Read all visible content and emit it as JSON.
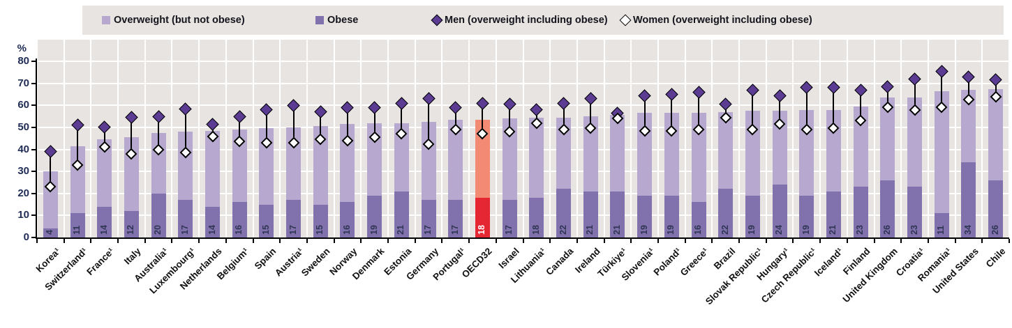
{
  "legend": {
    "items": [
      {
        "label": "Overweight (but not obese)",
        "marker": "square-filled"
      },
      {
        "label": "Obese",
        "marker": "square-filled"
      },
      {
        "label": "Men (overweight including obese)",
        "marker": "diamond-filled"
      },
      {
        "label": "Women (overweight including obese)",
        "marker": "diamond-open"
      }
    ]
  },
  "axes": {
    "y_unit": "%",
    "y_ticks": [
      0,
      10,
      20,
      30,
      40,
      50,
      60,
      70,
      80
    ],
    "y_max": 80
  },
  "chart_data": {
    "type": "bar",
    "subtype": "stacked-bars-with-point-markers",
    "title": "",
    "ylabel": "%",
    "ylim": [
      0,
      80
    ],
    "grid": true,
    "legend_position": "top",
    "categories": [
      "Korea¹",
      "Switzerland¹",
      "France¹",
      "Italy",
      "Australia¹",
      "Luxembourg¹",
      "Netherlands",
      "Belgium¹",
      "Spain",
      "Austria¹",
      "Sweden",
      "Norway",
      "Denmark",
      "Estonia",
      "Germany",
      "Portugal¹",
      "OECD32",
      "Israel",
      "Lithuania¹",
      "Canada",
      "Ireland",
      "Türkiye¹",
      "Slovenia¹",
      "Poland¹",
      "Greece¹",
      "Brazil",
      "Slovak Republic¹",
      "Hungary¹",
      "Czech Republic¹",
      "Iceland¹",
      "Finland",
      "United Kingdom",
      "Croatia¹",
      "Romania¹",
      "United States",
      "Chile"
    ],
    "highlight_category": "OECD32",
    "series": [
      {
        "name": "Obese",
        "role": "stack-bottom",
        "values": [
          4,
          11,
          14,
          12,
          20,
          17,
          14,
          16,
          15,
          17,
          15,
          16,
          19,
          21,
          17,
          17,
          18,
          17,
          18,
          22,
          21,
          21,
          19,
          19,
          16,
          22,
          19,
          24,
          19,
          21,
          23,
          26,
          23,
          11,
          34,
          26
        ]
      },
      {
        "name": "Overweight including obese (bar total)",
        "role": "stack-total",
        "values": [
          30,
          41.5,
          44.5,
          45.5,
          47.5,
          48,
          48.5,
          49,
          49.5,
          50,
          50.5,
          51.5,
          52,
          52,
          52.5,
          53.5,
          53.5,
          54,
          54.5,
          54.5,
          55,
          55.5,
          56.5,
          56.5,
          56.5,
          57,
          57.5,
          57.5,
          58,
          58,
          59.5,
          63.5,
          63.5,
          66.5,
          67,
          67.5
        ]
      },
      {
        "name": "Men (overweight including obese)",
        "role": "point-marker",
        "values": [
          39,
          51,
          50,
          54.5,
          55,
          58.5,
          51.5,
          55,
          58,
          60,
          57,
          59,
          59,
          61,
          63,
          59,
          61,
          60.5,
          58,
          61,
          63,
          56.5,
          64.5,
          65,
          66,
          60.5,
          67,
          64.5,
          68,
          68,
          67,
          68.5,
          72,
          75.5,
          73,
          71.5
        ]
      },
      {
        "name": "Women (overweight including obese)",
        "role": "point-marker",
        "values": [
          23,
          33,
          41,
          38,
          40,
          38.5,
          46,
          43.5,
          43,
          43,
          44.5,
          44,
          45.5,
          47,
          42.5,
          49,
          47,
          48,
          52,
          49,
          49.5,
          54,
          48.5,
          48.5,
          49,
          54.5,
          49,
          51.5,
          49,
          49.5,
          53,
          59,
          58,
          59,
          62.5,
          64
        ]
      }
    ],
    "bar_value_labels_source": "Obese",
    "colors": {
      "overweight": "#b7a8cf",
      "obese": "#8172ae",
      "men_marker": "#5b3c92",
      "women_marker": "#ffffff",
      "marker_outline": "#000000",
      "highlight_overweight": "#f28a74",
      "highlight_obese": "#e52733",
      "plot_background": "#e7e4e1",
      "gridline": "#ffffff",
      "value_label": "#2f3552",
      "value_label_highlight": "#ffffff",
      "axis_text": "#1f2c55"
    }
  }
}
